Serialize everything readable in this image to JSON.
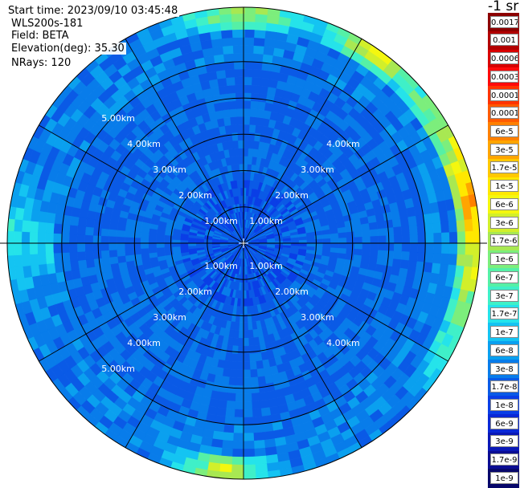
{
  "header": {
    "start_time": "Start time: 2023/09/10 03:45:48",
    "instrument": "WLS200s-181",
    "field": "Field: BETA",
    "elevation": "Elevation(deg): 35.30",
    "nrays": "NRays: 120"
  },
  "chart_data": {
    "type": "heatmap",
    "projection": "polar (PPI scan)",
    "field": "BETA",
    "elevation_deg": 35.3,
    "n_rays": 120,
    "range_rings_km": [
      1.0,
      2.0,
      3.0,
      4.0,
      5.0
    ],
    "range_ring_labels": [
      "1.00km",
      "2.00km",
      "3.00km",
      "4.00km",
      "5.00km"
    ],
    "max_range_km": 6.5,
    "spokes_deg": [
      0,
      30,
      60,
      90,
      120,
      150,
      180,
      210,
      240,
      270,
      300,
      330
    ],
    "colorbar": {
      "unit": "-1 sr",
      "ticks": [
        "0.0017",
        "0.001",
        "0.0006",
        "0.0003",
        "0.00017",
        "0.0001",
        "6e-5",
        "3e-5",
        "1.7e-5",
        "1e-5",
        "6e-6",
        "3e-6",
        "1.7e-6",
        "1e-6",
        "6e-7",
        "3e-7",
        "1.7e-7",
        "1e-7",
        "6e-8",
        "3e-8",
        "1.7e-8",
        "1e-8",
        "6e-9",
        "3e-9",
        "1.7e-9",
        "1e-9"
      ],
      "colors": [
        "#8c0000",
        "#b20000",
        "#d80000",
        "#ff0a0a",
        "#ff3300",
        "#ff5a00",
        "#ff8000",
        "#ffa500",
        "#ffc800",
        "#ffe800",
        "#f4f70f",
        "#d2ef2a",
        "#a8e852",
        "#7cee7c",
        "#55f0a6",
        "#3ff0c8",
        "#25e3ea",
        "#14c4f2",
        "#0aa0ef",
        "#087cea",
        "#0a5ae6",
        "#0a3ee6",
        "#0a28d6",
        "#0a18b6",
        "#0a0c92",
        "#07076a"
      ]
    },
    "background_value": "1.7e-8 to 6e-8",
    "notable_returns": [
      {
        "direction": "outer ring, east and northeast",
        "value": "3e-5 to 1e-6"
      },
      {
        "direction": "outer ring, north",
        "value": "1e-6 to 1.7e-7"
      },
      {
        "direction": "outer ring, south",
        "value": "1e-6 to 1.7e-7"
      },
      {
        "direction": "west, 5-6 km",
        "value": "3e-7 to 1.7e-7"
      }
    ]
  }
}
